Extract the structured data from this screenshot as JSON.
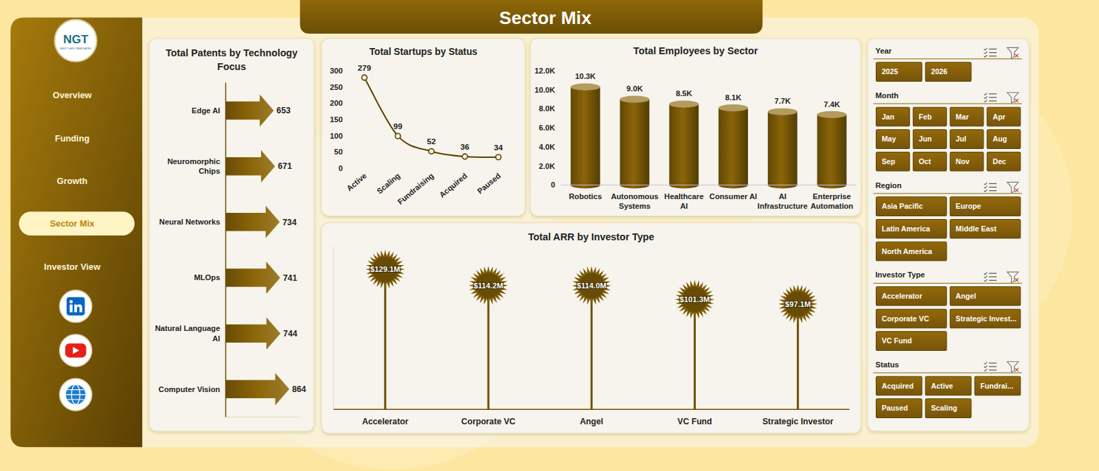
{
  "header": {
    "title": "Sector Mix"
  },
  "logo": {
    "text": "NGT",
    "subtitle": "NEXT GEN TEMPLATES"
  },
  "nav": {
    "items": [
      "Overview",
      "Funding",
      "Growth",
      "Sector Mix",
      "Investor View"
    ],
    "active": "Sector Mix"
  },
  "slicers": [
    {
      "title": "Year",
      "items": [
        "2025",
        "2026"
      ]
    },
    {
      "title": "Month",
      "items": [
        "Jan",
        "Feb",
        "Mar",
        "Apr",
        "May",
        "Jun",
        "Jul",
        "Aug",
        "Sep",
        "Oct",
        "Nov",
        "Dec"
      ]
    },
    {
      "title": "Region",
      "items": [
        "Asia Pacific",
        "Europe",
        "Latin America",
        "Middle East",
        "North America"
      ]
    },
    {
      "title": "Investor Type",
      "items": [
        "Accelerator",
        "Angel",
        "Corporate VC",
        "Strategic Invest...",
        "VC Fund"
      ]
    },
    {
      "title": "Status",
      "items": [
        "Acquired",
        "Active",
        "Fundrai...",
        "Paused",
        "Scaling"
      ]
    }
  ],
  "chart_data": [
    {
      "type": "bar",
      "orientation": "horizontal",
      "title": "Total Patents by Technology Focus",
      "categories": [
        "Edge AI",
        "Neuromorphic Chips",
        "Neural Networks",
        "MLOps",
        "Natural Language AI",
        "Computer Vision"
      ],
      "values": [
        653,
        671,
        734,
        741,
        744,
        864
      ],
      "xlim": [
        0,
        1000
      ],
      "data_labels": true,
      "tick_labels": "y",
      "color": "#8B6508",
      "marker": "arrow"
    },
    {
      "type": "line",
      "title": "Total Startups by Status",
      "categories": [
        "Active",
        "Scaling",
        "Fundraising",
        "Acquired",
        "Paused"
      ],
      "values": [
        279,
        99,
        52,
        36,
        34
      ],
      "ylim": [
        0,
        300
      ],
      "yticks": [
        0,
        50,
        100,
        150,
        200,
        250,
        300
      ],
      "data_labels": true,
      "color": "#5C4300",
      "marker": "circle",
      "line_style": "smooth"
    },
    {
      "type": "bar",
      "title": "Total Employees by Sector",
      "categories": [
        "Robotics",
        "Autonomous Systems",
        "Healthcare AI",
        "Consumer AI",
        "AI Infrastructure",
        "Enterprise Automation"
      ],
      "values": [
        10300,
        9000,
        8500,
        8100,
        7700,
        7400
      ],
      "value_labels": [
        "10.3K",
        "9.0K",
        "8.5K",
        "8.1K",
        "7.7K",
        "7.4K"
      ],
      "ylim": [
        0,
        12000
      ],
      "yticks": [
        0,
        {
          "value": 2000,
          "label": "2.0K"
        },
        {
          "value": 4000,
          "label": "4.0K"
        },
        {
          "value": 6000,
          "label": "6.0K"
        },
        {
          "value": 8000,
          "label": "8.0K"
        },
        {
          "value": 10000,
          "label": "10.0K"
        },
        {
          "value": 12000,
          "label": "12.0K"
        }
      ],
      "data_labels": true,
      "color": "#8B6508",
      "marker": "cylinder"
    },
    {
      "type": "lollipop",
      "title": "Total ARR by Investor Type",
      "categories": [
        "Accelerator",
        "Corporate VC",
        "Angel",
        "VC Fund",
        "Strategic Investor"
      ],
      "values": [
        129.1,
        114.2,
        114.0,
        101.3,
        97.1
      ],
      "value_labels": [
        "$129.1M",
        "$114.2M",
        "$114.0M",
        "$101.3M",
        "$97.1M"
      ],
      "ylim": [
        0,
        150
      ],
      "data_labels": true,
      "tick_labels": "x",
      "color": "#8B6508",
      "marker": "starburst"
    }
  ]
}
